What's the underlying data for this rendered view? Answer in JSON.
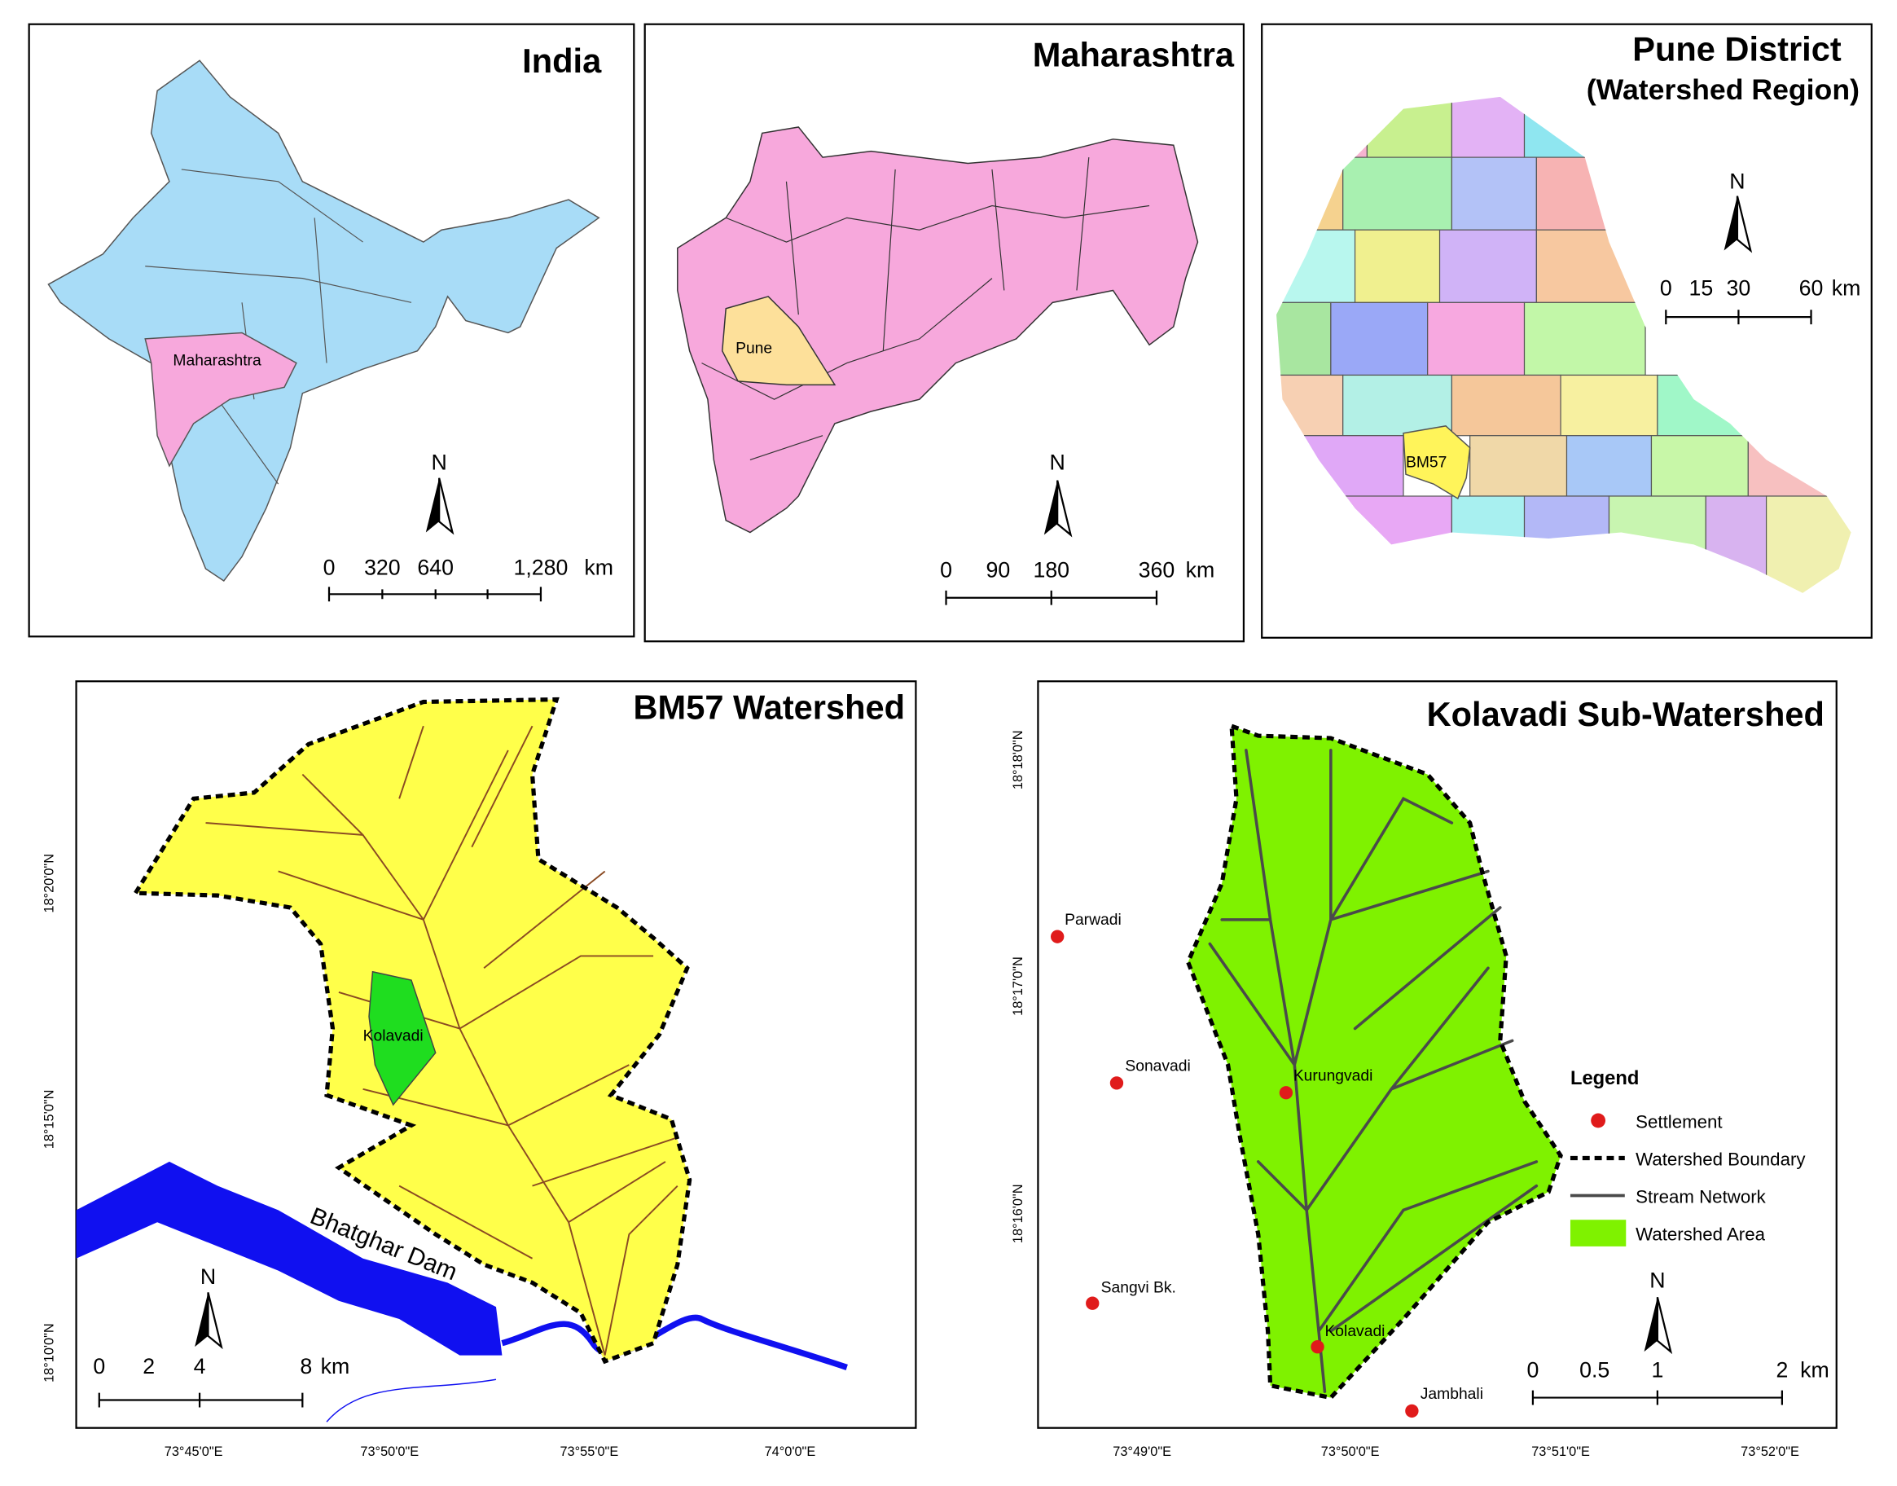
{
  "panels": [
    {
      "title": "India",
      "labels": [
        "Maharashtra"
      ],
      "north": "N",
      "scale": [
        "0",
        "320",
        "640",
        "1,280"
      ],
      "scale_unit": "km"
    },
    {
      "title": "Maharashtra",
      "labels": [
        "Pune"
      ],
      "north": "N",
      "scale": [
        "0",
        "90",
        "180",
        "360"
      ],
      "scale_unit": "km"
    },
    {
      "title": "Pune District",
      "subtitle": "(Watershed Region)",
      "labels": [
        "BM57"
      ],
      "north": "N",
      "scale": [
        "0",
        "15",
        "30",
        "60"
      ],
      "scale_unit": "km"
    },
    {
      "title": "BM57 Watershed",
      "labels": [
        "Kolavadi",
        "Bhatghar Dam"
      ],
      "north": "N",
      "scale": [
        "0",
        "2",
        "4",
        "8"
      ],
      "scale_unit": "km",
      "lat_labels": [
        "18°20'0\"N",
        "18°15'0\"N",
        "18°10'0\"N"
      ],
      "lon_labels": [
        "73°45'0\"E",
        "73°50'0\"E",
        "73°55'0\"E",
        "74°0'0\"E"
      ]
    },
    {
      "title": "Kolavadi Sub-Watershed",
      "settlements": [
        "Parwadi",
        "Sonavadi",
        "Sangvi Bk.",
        "Kurungvadi",
        "Kolavadi",
        "Jambhali"
      ],
      "legend": {
        "title": "Legend",
        "items": [
          "Settlement",
          "Watershed Boundary",
          "Stream Network",
          "Watershed Area"
        ]
      },
      "north": "N",
      "scale": [
        "0",
        "0.5",
        "1",
        "2"
      ],
      "scale_unit": "km",
      "lat_labels": [
        "18°18'0\"N",
        "18°17'0\"N",
        "18°16'0\"N"
      ],
      "lon_labels": [
        "73°49'0\"E",
        "73°50'0\"E",
        "73°51'0\"E",
        "73°52'0\"E"
      ]
    }
  ]
}
